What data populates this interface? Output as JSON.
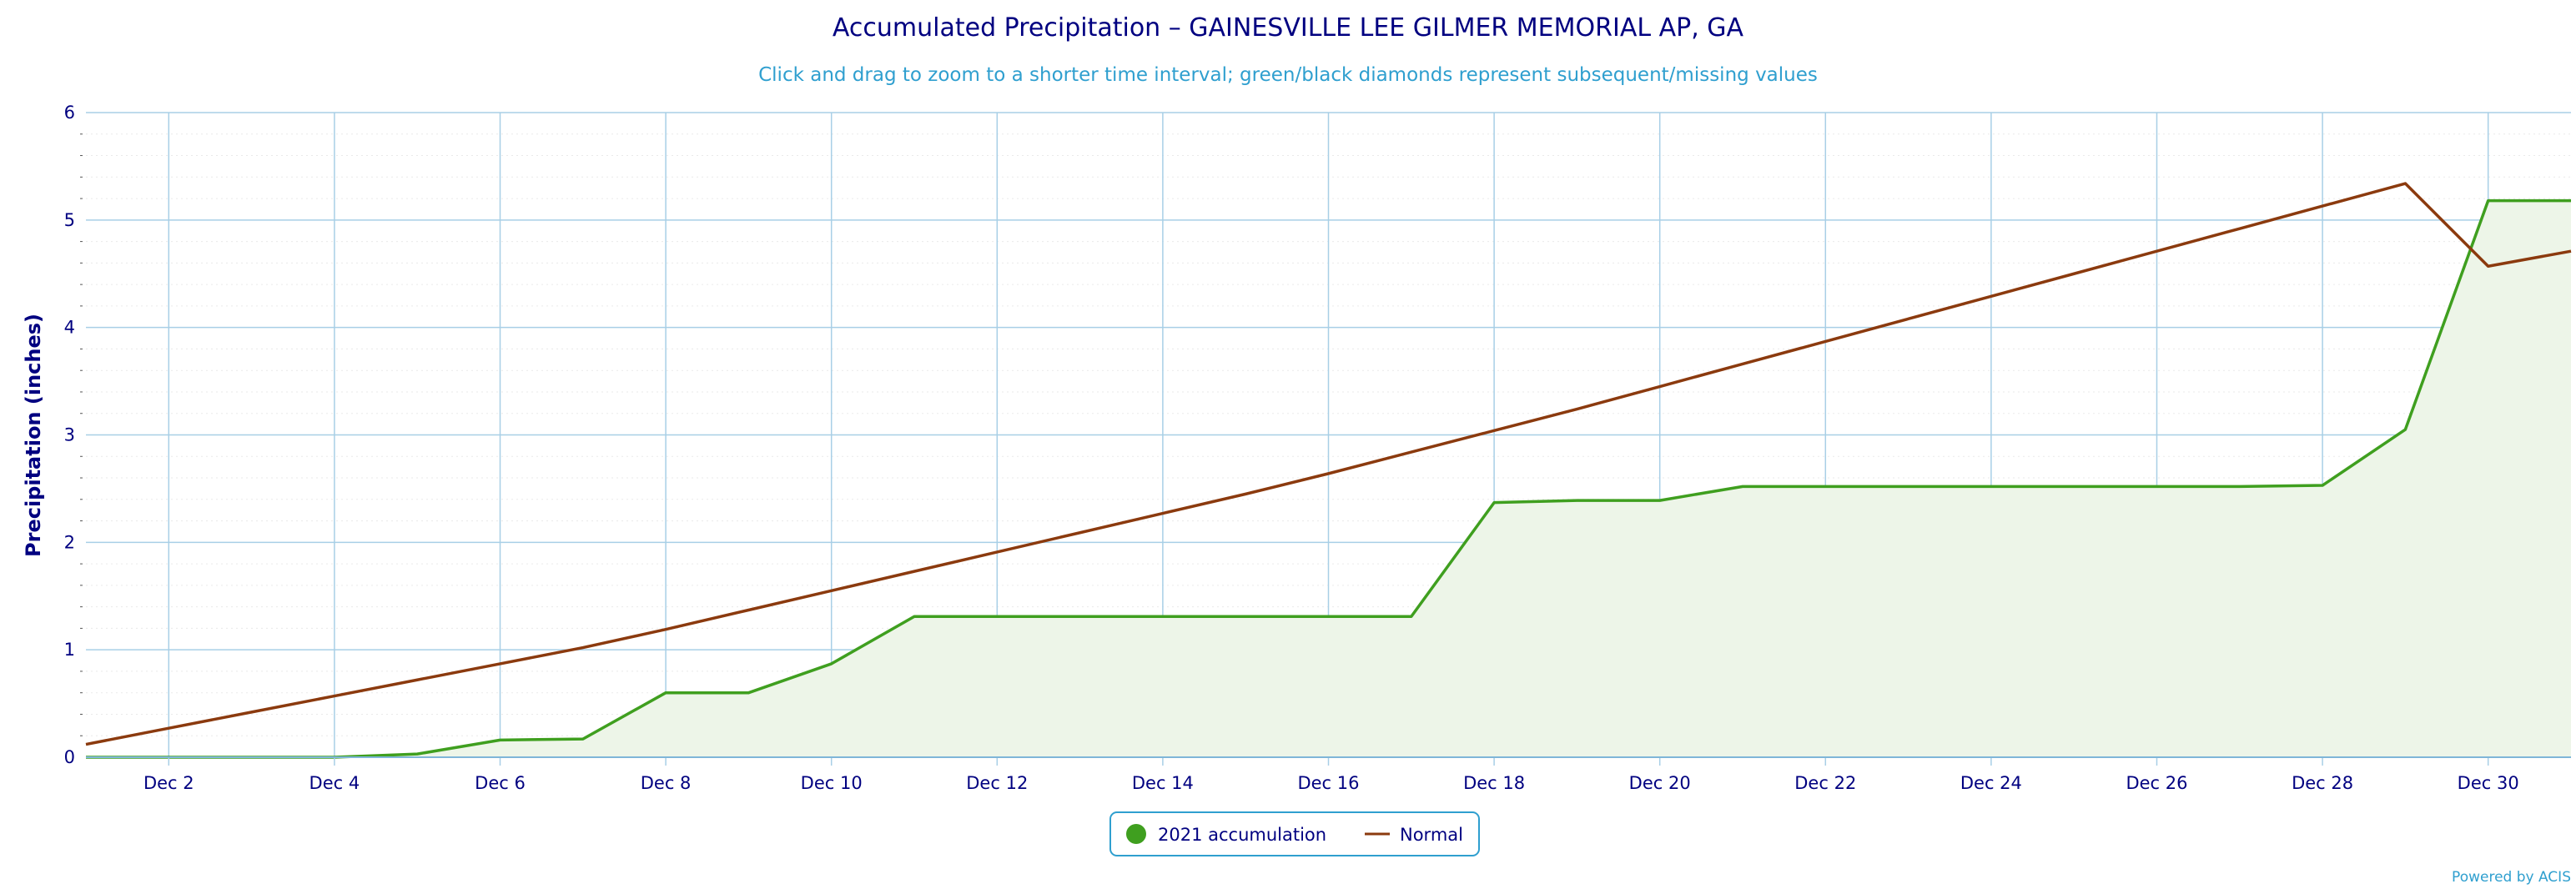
{
  "chart_data": {
    "type": "area",
    "title": "Accumulated Precipitation – GAINESVILLE LEE GILMER MEMORIAL AP, GA",
    "subtitle": "Click and drag to zoom to a shorter time interval; green/black diamonds represent subsequent/missing values",
    "xlabel": "",
    "ylabel": "Precipitation (inches)",
    "ylim": [
      0,
      6
    ],
    "xlim": [
      "Dec 1",
      "Dec 31"
    ],
    "y_ticks": [
      "0",
      "1",
      "2",
      "3",
      "4",
      "5",
      "6"
    ],
    "x_tick_labels": [
      "Dec 2",
      "Dec 4",
      "Dec 6",
      "Dec 8",
      "Dec 10",
      "Dec 12",
      "Dec 14",
      "Dec 16",
      "Dec 18",
      "Dec 20",
      "Dec 22",
      "Dec 24",
      "Dec 26",
      "Dec 28",
      "Dec 30"
    ],
    "grid": true,
    "legend_position": "bottom-center",
    "x": [
      "Dec 1",
      "Dec 2",
      "Dec 3",
      "Dec 4",
      "Dec 5",
      "Dec 6",
      "Dec 7",
      "Dec 8",
      "Dec 9",
      "Dec 10",
      "Dec 11",
      "Dec 12",
      "Dec 13",
      "Dec 14",
      "Dec 15",
      "Dec 16",
      "Dec 17",
      "Dec 18",
      "Dec 19",
      "Dec 20",
      "Dec 21",
      "Dec 22",
      "Dec 23",
      "Dec 24",
      "Dec 25",
      "Dec 26",
      "Dec 27",
      "Dec 28",
      "Dec 29",
      "Dec 30",
      "Dec 31"
    ],
    "series": [
      {
        "name": "2021 accumulation",
        "color": "#3f9f1f",
        "values": [
          0,
          0,
          0,
          0,
          0.03,
          0.16,
          0.17,
          0.6,
          0.6,
          0.87,
          1.31,
          1.31,
          1.31,
          1.31,
          1.31,
          1.31,
          1.31,
          2.37,
          2.39,
          2.39,
          2.52,
          2.52,
          2.52,
          2.52,
          2.52,
          2.52,
          2.52,
          2.53,
          3.05,
          5.18,
          5.18
        ]
      },
      {
        "name": "Normal",
        "color": "#8b3a0e",
        "values": [
          0.12,
          0.27,
          0.42,
          0.57,
          0.72,
          0.87,
          1.02,
          1.19,
          1.37,
          1.55,
          1.73,
          1.91,
          2.09,
          2.27,
          2.45,
          2.64,
          2.84,
          3.04,
          3.24,
          3.45,
          3.66,
          3.87,
          4.08,
          4.29,
          4.5,
          4.71,
          4.92,
          5.13,
          5.34,
          4.57,
          4.71
        ]
      }
    ]
  },
  "credit": "Powered by ACIS",
  "colors": {
    "title": "#000080",
    "subtitle": "#2f9fcf",
    "grid": "#a8cfe6",
    "area_fill": "#edf5e8",
    "legend_border": "#2f9fcf"
  }
}
